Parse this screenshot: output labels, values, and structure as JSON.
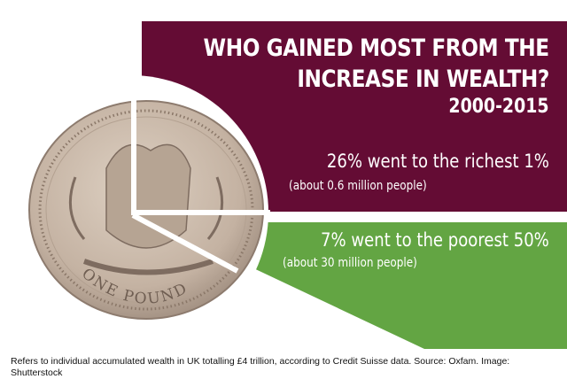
{
  "colors": {
    "purple": "#640c34",
    "green": "#63a543",
    "coin": "#c9b8a8"
  },
  "header": {
    "title_line1": "WHO GAINED MOST FROM THE",
    "title_line2": "INCREASE IN WEALTH?",
    "years": "2000-2015"
  },
  "stats": [
    {
      "headline": "26% went to the richest 1%",
      "detail": "(about 0.6 million people)"
    },
    {
      "headline": "7% went to the poorest 50%",
      "detail": "(about 30 million people)"
    }
  ],
  "coin": {
    "inscription": "ONE POUND"
  },
  "footnote": "Refers to individual accumulated wealth in UK totalling £4 trillion, according to Credit Suisse data. Source: Oxfam. Image: Shutterstock",
  "chart_data": {
    "type": "pie",
    "title": "WHO GAINED MOST FROM THE INCREASE IN WEALTH? 2000-2015",
    "categories": [
      "richest 1%",
      "poorest 50%"
    ],
    "values": [
      26,
      7
    ],
    "unit": "%"
  }
}
